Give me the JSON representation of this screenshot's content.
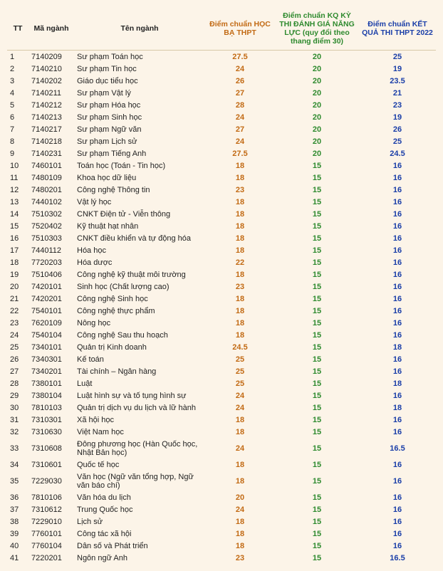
{
  "table": {
    "headers": {
      "tt": "TT",
      "ma": "Mã ngành",
      "ten": "Tên ngành",
      "hocba": "Điểm chuẩn HỌC BẠ THPT",
      "dgnl": "Điểm chuẩn KQ KỲ THI ĐÁNH GIÁ NĂNG LỰC (quy đổi theo thang điểm 30)",
      "thpt": "Điểm chuẩn KẾT QUẢ THI THPT 2022"
    },
    "rows": [
      {
        "tt": "1",
        "ma": "7140209",
        "ten": "Sư phạm Toán học",
        "hocba": "27.5",
        "dgnl": "20",
        "thpt": "25"
      },
      {
        "tt": "2",
        "ma": "7140210",
        "ten": "Sư phạm Tin học",
        "hocba": "24",
        "dgnl": "20",
        "thpt": "19"
      },
      {
        "tt": "3",
        "ma": "7140202",
        "ten": "Giáo dục tiểu học",
        "hocba": "26",
        "dgnl": "20",
        "thpt": "23.5"
      },
      {
        "tt": "4",
        "ma": "7140211",
        "ten": "Sư phạm Vật lý",
        "hocba": "27",
        "dgnl": "20",
        "thpt": "21"
      },
      {
        "tt": "5",
        "ma": "7140212",
        "ten": "Sư phạm Hóa học",
        "hocba": "28",
        "dgnl": "20",
        "thpt": "23"
      },
      {
        "tt": "6",
        "ma": "7140213",
        "ten": "Sư phạm Sinh học",
        "hocba": "24",
        "dgnl": "20",
        "thpt": "19"
      },
      {
        "tt": "7",
        "ma": "7140217",
        "ten": "Sư phạm Ngữ văn",
        "hocba": "27",
        "dgnl": "20",
        "thpt": "26"
      },
      {
        "tt": "8",
        "ma": "7140218",
        "ten": "Sư phạm Lịch sử",
        "hocba": "24",
        "dgnl": "20",
        "thpt": "25"
      },
      {
        "tt": "9",
        "ma": "7140231",
        "ten": "Sư phạm Tiếng Anh",
        "hocba": "27.5",
        "dgnl": "20",
        "thpt": "24.5"
      },
      {
        "tt": "10",
        "ma": "7460101",
        "ten": "Toán học (Toán - Tin học)",
        "hocba": "18",
        "dgnl": "15",
        "thpt": "16"
      },
      {
        "tt": "11",
        "ma": "7480109",
        "ten": "Khoa học dữ liệu",
        "hocba": "18",
        "dgnl": "15",
        "thpt": "16"
      },
      {
        "tt": "12",
        "ma": "7480201",
        "ten": "Công nghệ Thông tin",
        "hocba": "23",
        "dgnl": "15",
        "thpt": "16"
      },
      {
        "tt": "13",
        "ma": "7440102",
        "ten": "Vật lý học",
        "hocba": "18",
        "dgnl": "15",
        "thpt": "16"
      },
      {
        "tt": "14",
        "ma": "7510302",
        "ten": "CNKT Điện tử - Viễn thông",
        "hocba": "18",
        "dgnl": "15",
        "thpt": "16"
      },
      {
        "tt": "15",
        "ma": "7520402",
        "ten": "Kỹ thuật hạt nhân",
        "hocba": "18",
        "dgnl": "15",
        "thpt": "16"
      },
      {
        "tt": "16",
        "ma": "7510303",
        "ten": "CNKT điều khiển và tự động hóa",
        "hocba": "18",
        "dgnl": "15",
        "thpt": "16"
      },
      {
        "tt": "17",
        "ma": "7440112",
        "ten": "Hóa học",
        "hocba": "18",
        "dgnl": "15",
        "thpt": "16"
      },
      {
        "tt": "18",
        "ma": "7720203",
        "ten": "Hóa dược",
        "hocba": "22",
        "dgnl": "15",
        "thpt": "16"
      },
      {
        "tt": "19",
        "ma": "7510406",
        "ten": "Công nghệ kỹ thuật môi trường",
        "hocba": "18",
        "dgnl": "15",
        "thpt": "16"
      },
      {
        "tt": "20",
        "ma": "7420101",
        "ten": "Sinh học (Chất lượng cao)",
        "hocba": "23",
        "dgnl": "15",
        "thpt": "16"
      },
      {
        "tt": "21",
        "ma": "7420201",
        "ten": "Công nghệ Sinh học",
        "hocba": "18",
        "dgnl": "15",
        "thpt": "16"
      },
      {
        "tt": "22",
        "ma": "7540101",
        "ten": "Công nghệ thực phẩm",
        "hocba": "18",
        "dgnl": "15",
        "thpt": "16"
      },
      {
        "tt": "23",
        "ma": "7620109",
        "ten": "Nông học",
        "hocba": "18",
        "dgnl": "15",
        "thpt": "16"
      },
      {
        "tt": "24",
        "ma": "7540104",
        "ten": "Công nghệ Sau thu hoạch",
        "hocba": "18",
        "dgnl": "15",
        "thpt": "16"
      },
      {
        "tt": "25",
        "ma": "7340101",
        "ten": "Quản trị Kinh doanh",
        "hocba": "24.5",
        "dgnl": "15",
        "thpt": "18"
      },
      {
        "tt": "26",
        "ma": "7340301",
        "ten": "Kế toán",
        "hocba": "25",
        "dgnl": "15",
        "thpt": "16"
      },
      {
        "tt": "27",
        "ma": "7340201",
        "ten": "Tài chính – Ngân hàng",
        "hocba": "25",
        "dgnl": "15",
        "thpt": "16"
      },
      {
        "tt": "28",
        "ma": "7380101",
        "ten": "Luật",
        "hocba": "25",
        "dgnl": "15",
        "thpt": "18"
      },
      {
        "tt": "29",
        "ma": "7380104",
        "ten": "Luật hình sự và tố tụng hình sự",
        "hocba": "24",
        "dgnl": "15",
        "thpt": "16"
      },
      {
        "tt": "30",
        "ma": "7810103",
        "ten": "Quản trị dịch vụ du lịch và lữ hành",
        "hocba": "24",
        "dgnl": "15",
        "thpt": "18"
      },
      {
        "tt": "31",
        "ma": "7310301",
        "ten": "Xã hội học",
        "hocba": "18",
        "dgnl": "15",
        "thpt": "16"
      },
      {
        "tt": "32",
        "ma": "7310630",
        "ten": "Việt Nam học",
        "hocba": "18",
        "dgnl": "15",
        "thpt": "16"
      },
      {
        "tt": "33",
        "ma": "7310608",
        "ten": "Đông phương học (Hàn Quốc học, Nhật Bản học)",
        "hocba": "24",
        "dgnl": "15",
        "thpt": "16.5"
      },
      {
        "tt": "34",
        "ma": "7310601",
        "ten": "Quốc tế học",
        "hocba": "18",
        "dgnl": "15",
        "thpt": "16"
      },
      {
        "tt": "35",
        "ma": "7229030",
        "ten": "Văn học (Ngữ văn tổng hợp, Ngữ văn báo chí)",
        "hocba": "18",
        "dgnl": "15",
        "thpt": "16"
      },
      {
        "tt": "36",
        "ma": "7810106",
        "ten": "Văn hóa du lịch",
        "hocba": "20",
        "dgnl": "15",
        "thpt": "16"
      },
      {
        "tt": "37",
        "ma": "7310612",
        "ten": "Trung Quốc học",
        "hocba": "24",
        "dgnl": "15",
        "thpt": "16"
      },
      {
        "tt": "38",
        "ma": "7229010",
        "ten": "Lịch sử",
        "hocba": "18",
        "dgnl": "15",
        "thpt": "16"
      },
      {
        "tt": "39",
        "ma": "7760101",
        "ten": "Công tác xã hội",
        "hocba": "18",
        "dgnl": "15",
        "thpt": "16"
      },
      {
        "tt": "40",
        "ma": "7760104",
        "ten": "Dân số và Phát triển",
        "hocba": "18",
        "dgnl": "15",
        "thpt": "16"
      },
      {
        "tt": "41",
        "ma": "7220201",
        "ten": "Ngôn ngữ Anh",
        "hocba": "23",
        "dgnl": "15",
        "thpt": "16.5"
      }
    ]
  }
}
